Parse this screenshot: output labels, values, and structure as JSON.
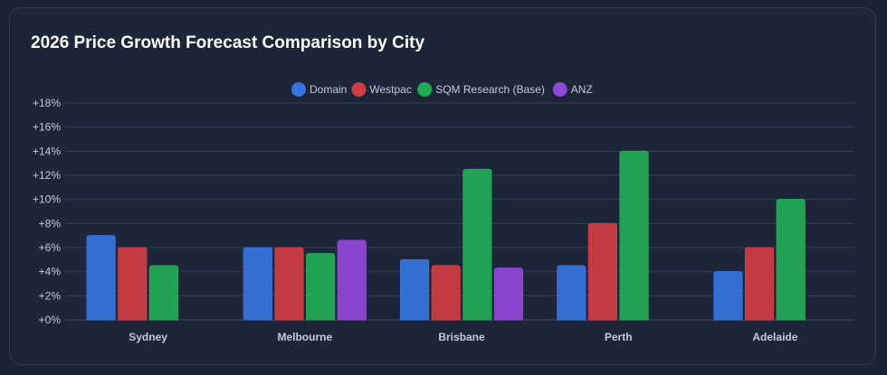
{
  "chart_data": {
    "type": "bar",
    "title": "2026 Price Growth Forecast Comparison by City",
    "categories": [
      "Sydney",
      "Melbourne",
      "Brisbane",
      "Perth",
      "Adelaide"
    ],
    "series": [
      {
        "name": "Domain",
        "color": "#3574e0",
        "values": [
          7,
          6,
          5,
          4.5,
          4
        ]
      },
      {
        "name": "Westpac",
        "color": "#d23c43",
        "values": [
          6,
          6,
          4.5,
          8,
          6
        ]
      },
      {
        "name": "SQM Research (Base)",
        "color": "#22ab55",
        "values": [
          4.5,
          5.5,
          12.5,
          14,
          10
        ]
      },
      {
        "name": "ANZ",
        "color": "#9147d9",
        "values": [
          null,
          6.6,
          4.3,
          null,
          null
        ]
      }
    ],
    "ylim": [
      0,
      18
    ],
    "yticks": [
      "+0%",
      "+2%",
      "+4%",
      "+6%",
      "+8%",
      "+10%",
      "+12%",
      "+14%",
      "+16%",
      "+18%"
    ],
    "grid": true,
    "legend": "top-center"
  }
}
